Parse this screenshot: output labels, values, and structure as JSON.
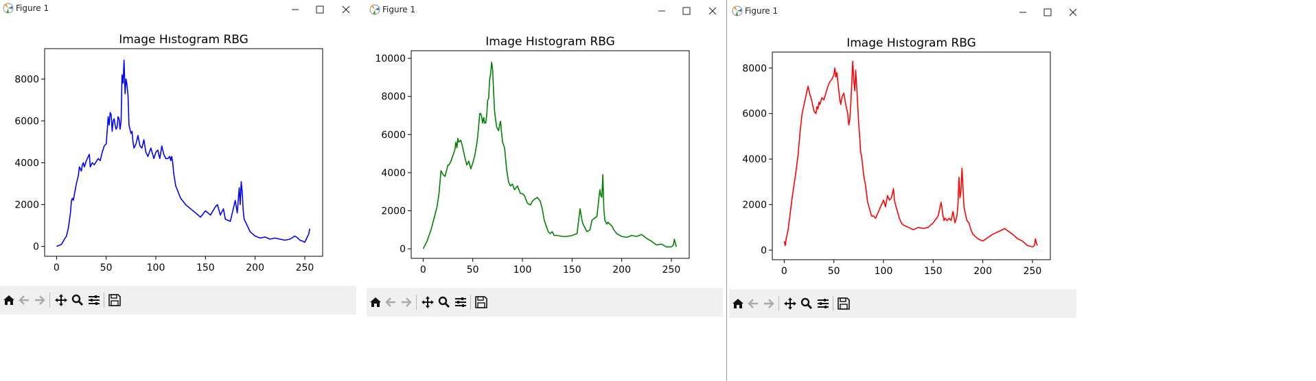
{
  "windows": [
    {
      "title": "Figure 1",
      "chart_data": {
        "type": "line",
        "title": "Image Hıstogram RBG",
        "color": "#0000ff",
        "xlim": [
          -12,
          268
        ],
        "ylim": [
          -470,
          9450
        ],
        "xticks": [
          0,
          50,
          100,
          150,
          200,
          250
        ],
        "yticks": [
          0,
          2000,
          4000,
          6000,
          8000
        ],
        "x": [
          0,
          5,
          8,
          10,
          12,
          14,
          15,
          16,
          17,
          18,
          20,
          22,
          23,
          24,
          25,
          26,
          27,
          28,
          30,
          32,
          33,
          34,
          35,
          36,
          38,
          40,
          42,
          44,
          46,
          48,
          50,
          51,
          52,
          53,
          54,
          55,
          56,
          57,
          58,
          59,
          60,
          61,
          62,
          63,
          64,
          65,
          66,
          67,
          68,
          69,
          70,
          71,
          72,
          73,
          74,
          75,
          76,
          77,
          78,
          79,
          80,
          82,
          84,
          86,
          88,
          90,
          92,
          95,
          98,
          100,
          102,
          104,
          106,
          108,
          110,
          112,
          114,
          115,
          116,
          117,
          118,
          120,
          125,
          130,
          135,
          140,
          145,
          150,
          155,
          160,
          162,
          165,
          168,
          170,
          175,
          180,
          182,
          184,
          185,
          186,
          187,
          188,
          189,
          190,
          192,
          195,
          200,
          205,
          210,
          215,
          220,
          225,
          230,
          235,
          240,
          243,
          245,
          248,
          250,
          252,
          254,
          255
        ],
        "values": [
          0,
          100,
          350,
          500,
          900,
          1600,
          2200,
          2300,
          2200,
          2500,
          3000,
          3400,
          3800,
          3700,
          3600,
          3900,
          4000,
          3800,
          4100,
          4300,
          4400,
          3800,
          3900,
          4000,
          3900,
          4050,
          4200,
          4100,
          4500,
          4800,
          4900,
          5500,
          6200,
          5800,
          6400,
          6300,
          5500,
          6000,
          6100,
          5800,
          5600,
          5700,
          6200,
          6100,
          5600,
          6000,
          8200,
          7800,
          8900,
          7300,
          8000,
          7700,
          7200,
          5800,
          5600,
          5400,
          5500,
          5000,
          4700,
          4800,
          4900,
          5300,
          4800,
          4700,
          5100,
          4500,
          4300,
          4700,
          4200,
          4500,
          4600,
          4200,
          4800,
          4400,
          4200,
          4200,
          4300,
          4100,
          4300,
          4000,
          3500,
          2900,
          2300,
          2000,
          1800,
          1600,
          1400,
          1700,
          1500,
          1900,
          2000,
          1500,
          1800,
          1300,
          1200,
          2200,
          1600,
          2800,
          2000,
          3100,
          2600,
          1700,
          1300,
          1200,
          1000,
          700,
          500,
          400,
          450,
          350,
          400,
          350,
          300,
          350,
          500,
          400,
          300,
          250,
          200,
          400,
          600,
          850
        ]
      }
    },
    {
      "title": "Figure 1",
      "chart_data": {
        "type": "line",
        "title": "Image Hıstogram RBG",
        "color": "#008000",
        "xlim": [
          -12,
          268
        ],
        "ylim": [
          -500,
          10400
        ],
        "xticks": [
          0,
          50,
          100,
          150,
          200,
          250
        ],
        "yticks": [
          0,
          2000,
          4000,
          6000,
          8000,
          10000
        ],
        "x": [
          0,
          4,
          8,
          10,
          12,
          14,
          16,
          17,
          18,
          19,
          20,
          22,
          24,
          25,
          26,
          28,
          30,
          32,
          33,
          34,
          35,
          36,
          38,
          40,
          42,
          44,
          46,
          48,
          50,
          52,
          54,
          55,
          56,
          57,
          58,
          59,
          60,
          61,
          62,
          63,
          64,
          65,
          66,
          67,
          68,
          69,
          70,
          71,
          72,
          73,
          74,
          75,
          76,
          77,
          78,
          79,
          80,
          82,
          84,
          86,
          88,
          90,
          92,
          95,
          98,
          100,
          102,
          105,
          108,
          110,
          112,
          115,
          118,
          120,
          122,
          124,
          126,
          128,
          130,
          132,
          135,
          140,
          145,
          150,
          155,
          158,
          160,
          161,
          162,
          163,
          165,
          168,
          170,
          175,
          178,
          179,
          180,
          181,
          182,
          183,
          184,
          185,
          186,
          188,
          190,
          192,
          195,
          200,
          205,
          210,
          215,
          220,
          225,
          230,
          235,
          240,
          245,
          250,
          252,
          253,
          254,
          255
        ],
        "values": [
          0,
          400,
          1000,
          1400,
          1800,
          2200,
          2900,
          3500,
          4100,
          4000,
          3900,
          3800,
          4200,
          4400,
          4400,
          4600,
          4900,
          5200,
          5600,
          5300,
          5800,
          5600,
          5700,
          5300,
          4800,
          4400,
          4600,
          4200,
          4500,
          4900,
          5500,
          5900,
          6500,
          7100,
          7100,
          6900,
          6600,
          6900,
          6600,
          6600,
          7000,
          7800,
          7900,
          8900,
          9200,
          9800,
          9400,
          8200,
          7200,
          6800,
          6400,
          6300,
          6200,
          6500,
          6700,
          6100,
          5600,
          5300,
          4200,
          3500,
          3300,
          3400,
          3100,
          3300,
          2900,
          2900,
          2800,
          2400,
          2300,
          2500,
          2600,
          2700,
          2500,
          2100,
          1500,
          1200,
          900,
          800,
          900,
          700,
          700,
          650,
          650,
          700,
          800,
          2100,
          1500,
          1300,
          1200,
          1100,
          900,
          1000,
          1500,
          1700,
          3100,
          2800,
          2700,
          3900,
          2100,
          1500,
          1400,
          1300,
          1400,
          1300,
          1200,
          1000,
          800,
          650,
          600,
          700,
          650,
          750,
          550,
          400,
          200,
          250,
          100,
          100,
          200,
          500,
          300,
          100
        ]
      }
    },
    {
      "title": "Figure 1",
      "chart_data": {
        "type": "line",
        "title": "Image Hıstogram RBG",
        "color": "#ff0000",
        "xlim": [
          -12,
          268
        ],
        "ylim": [
          -420,
          8700
        ],
        "xticks": [
          0,
          50,
          100,
          150,
          200,
          250
        ],
        "yticks": [
          0,
          2000,
          4000,
          6000,
          8000
        ],
        "x": [
          0,
          1,
          2,
          4,
          6,
          8,
          10,
          12,
          14,
          16,
          18,
          20,
          22,
          24,
          25,
          26,
          27,
          28,
          30,
          32,
          33,
          34,
          35,
          36,
          38,
          40,
          42,
          44,
          46,
          48,
          50,
          51,
          52,
          53,
          54,
          55,
          56,
          57,
          58,
          60,
          62,
          64,
          65,
          66,
          67,
          68,
          69,
          70,
          71,
          72,
          73,
          74,
          75,
          76,
          77,
          78,
          80,
          82,
          84,
          86,
          88,
          90,
          92,
          95,
          98,
          100,
          102,
          104,
          106,
          108,
          110,
          111,
          112,
          114,
          116,
          118,
          120,
          125,
          130,
          135,
          140,
          145,
          150,
          155,
          158,
          160,
          161,
          162,
          164,
          166,
          168,
          170,
          172,
          174,
          175,
          176,
          177,
          178,
          179,
          180,
          181,
          182,
          184,
          186,
          188,
          190,
          195,
          200,
          205,
          210,
          215,
          220,
          222,
          225,
          230,
          235,
          240,
          245,
          250,
          252,
          253,
          254,
          255
        ],
        "values": [
          400,
          200,
          500,
          900,
          1600,
          2300,
          2900,
          3500,
          4200,
          5200,
          6000,
          6400,
          6800,
          7200,
          7000,
          6800,
          6700,
          6500,
          6100,
          6000,
          6300,
          6200,
          6500,
          6400,
          6700,
          6600,
          6900,
          7200,
          7400,
          7500,
          7700,
          8000,
          7600,
          7800,
          7400,
          7000,
          6600,
          6400,
          6700,
          6900,
          6400,
          6000,
          5500,
          5700,
          6400,
          7300,
          8300,
          7500,
          7000,
          7900,
          7200,
          6400,
          5600,
          5000,
          4300,
          4100,
          3300,
          2800,
          2100,
          1800,
          1500,
          1500,
          1400,
          1700,
          2000,
          2200,
          1900,
          2400,
          2200,
          2300,
          2700,
          2200,
          2000,
          1700,
          1400,
          1200,
          1100,
          1000,
          900,
          1000,
          950,
          1000,
          1200,
          1500,
          2100,
          1500,
          1300,
          1400,
          1300,
          1400,
          1300,
          1700,
          1200,
          1500,
          2000,
          3200,
          2300,
          2600,
          3600,
          2800,
          1900,
          1700,
          1300,
          1200,
          900,
          700,
          500,
          400,
          550,
          700,
          800,
          900,
          950,
          850,
          700,
          500,
          400,
          200,
          150,
          200,
          500,
          300,
          200
        ]
      }
    }
  ]
}
